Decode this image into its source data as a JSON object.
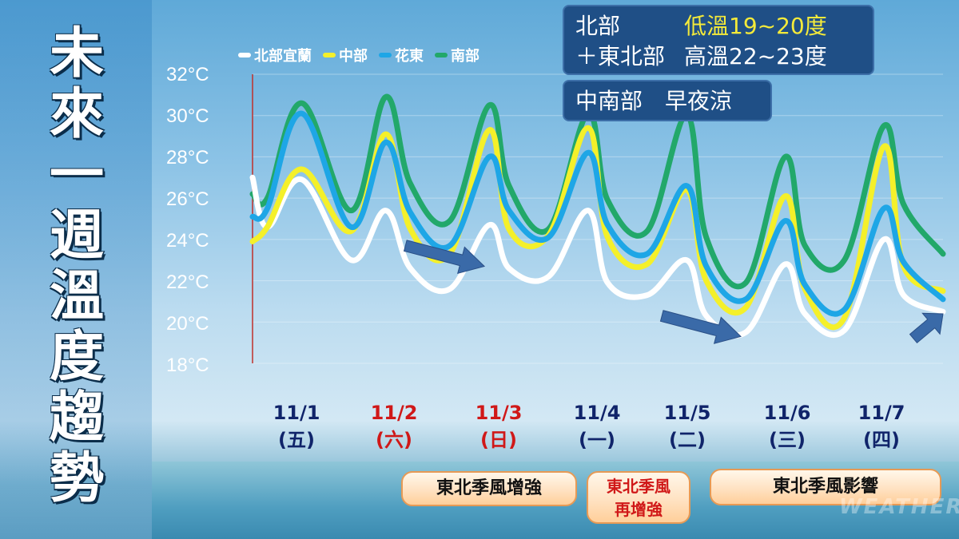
{
  "title_chars": [
    "未",
    "來",
    "一",
    "週",
    "溫",
    "度",
    "趨",
    "勢"
  ],
  "legend": [
    {
      "name": "北部宜蘭",
      "color": "#ffffff"
    },
    {
      "name": "中部",
      "color": "#f4f02a"
    },
    {
      "name": "花東",
      "color": "#1ea6e6"
    },
    {
      "name": "南部",
      "color": "#22a86a"
    }
  ],
  "info_box": {
    "north_label": "北部",
    "low": "低溫19~20度",
    "northeast_label": "＋東北部",
    "high": "高溫22~23度",
    "central_south_label": "中南部",
    "central_south_text": "早夜涼"
  },
  "x_labels": [
    {
      "date": "11/1",
      "weekday": "(五)",
      "color": "#10246a"
    },
    {
      "date": "11/2",
      "weekday": "(六)",
      "color": "#d01818"
    },
    {
      "date": "11/3",
      "weekday": "(日)",
      "color": "#d01818"
    },
    {
      "date": "11/4",
      "weekday": "(一)",
      "color": "#10246a"
    },
    {
      "date": "11/5",
      "weekday": "(二)",
      "color": "#10246a"
    },
    {
      "date": "11/6",
      "weekday": "(三)",
      "color": "#10246a"
    },
    {
      "date": "11/7",
      "weekday": "(四)",
      "color": "#10246a"
    }
  ],
  "notes": {
    "note1": "東北季風增強",
    "note2_line1": "東北季風",
    "note2_line2": "再增強",
    "note3": "東北季風影響"
  },
  "watermark": "WEATHER",
  "chart_data": {
    "type": "line",
    "ylim": [
      18,
      32
    ],
    "yticks": [
      "32°C",
      "30°C",
      "28°C",
      "26°C",
      "24°C",
      "22°C",
      "20°C",
      "18°C"
    ],
    "ytick_values": [
      32,
      30,
      28,
      26,
      24,
      22,
      20,
      18
    ],
    "xlim": [
      0,
      7
    ],
    "x": [
      0.0,
      0.15,
      0.5,
      1.0,
      1.35,
      1.6,
      2.0,
      2.4,
      2.6,
      3.0,
      3.4,
      3.6,
      4.0,
      4.4,
      4.6,
      5.0,
      5.4,
      5.6,
      6.0,
      6.4,
      6.6,
      7.0
    ],
    "series": [
      {
        "name": "北部宜蘭",
        "color": "#ffffff",
        "values": [
          27,
          24.6,
          26.9,
          23.0,
          25.4,
          22.6,
          21.6,
          24.7,
          22.6,
          22.2,
          25.4,
          21.9,
          21.3,
          23.0,
          20.3,
          19.5,
          22.8,
          20.4,
          19.6,
          24.0,
          21.3,
          20.5
        ]
      },
      {
        "name": "中部",
        "color": "#f4f02a",
        "values": [
          23.9,
          24.6,
          27.4,
          24.4,
          29.1,
          24.5,
          23.3,
          29.3,
          24.5,
          24.2,
          29.4,
          24.1,
          22.8,
          26.4,
          22.0,
          20.7,
          26.1,
          21.6,
          20.2,
          28.5,
          22.7,
          21.5
        ]
      },
      {
        "name": "花東",
        "color": "#1ea6e6",
        "values": [
          25.1,
          25.5,
          30.1,
          24.6,
          28.7,
          25.3,
          23.7,
          28.0,
          25.4,
          24.1,
          28.2,
          24.7,
          23.3,
          26.6,
          22.7,
          21.1,
          24.9,
          21.8,
          20.6,
          25.5,
          22.9,
          21.1
        ]
      },
      {
        "name": "南部",
        "color": "#22a86a",
        "values": [
          26.2,
          26.0,
          30.6,
          25.4,
          30.9,
          26.7,
          24.9,
          30.5,
          26.6,
          24.5,
          30.1,
          25.9,
          24.4,
          30.0,
          24.1,
          21.9,
          28.0,
          23.7,
          23.0,
          29.5,
          25.7,
          23.3
        ]
      }
    ],
    "trend_arrows": [
      {
        "from": [
          1.55,
          23.7
        ],
        "to": [
          2.35,
          22.7
        ]
      },
      {
        "from": [
          4.15,
          20.3
        ],
        "to": [
          4.95,
          19.3
        ]
      },
      {
        "from": [
          6.7,
          19.2
        ],
        "to": [
          7.0,
          20.4
        ]
      }
    ]
  }
}
